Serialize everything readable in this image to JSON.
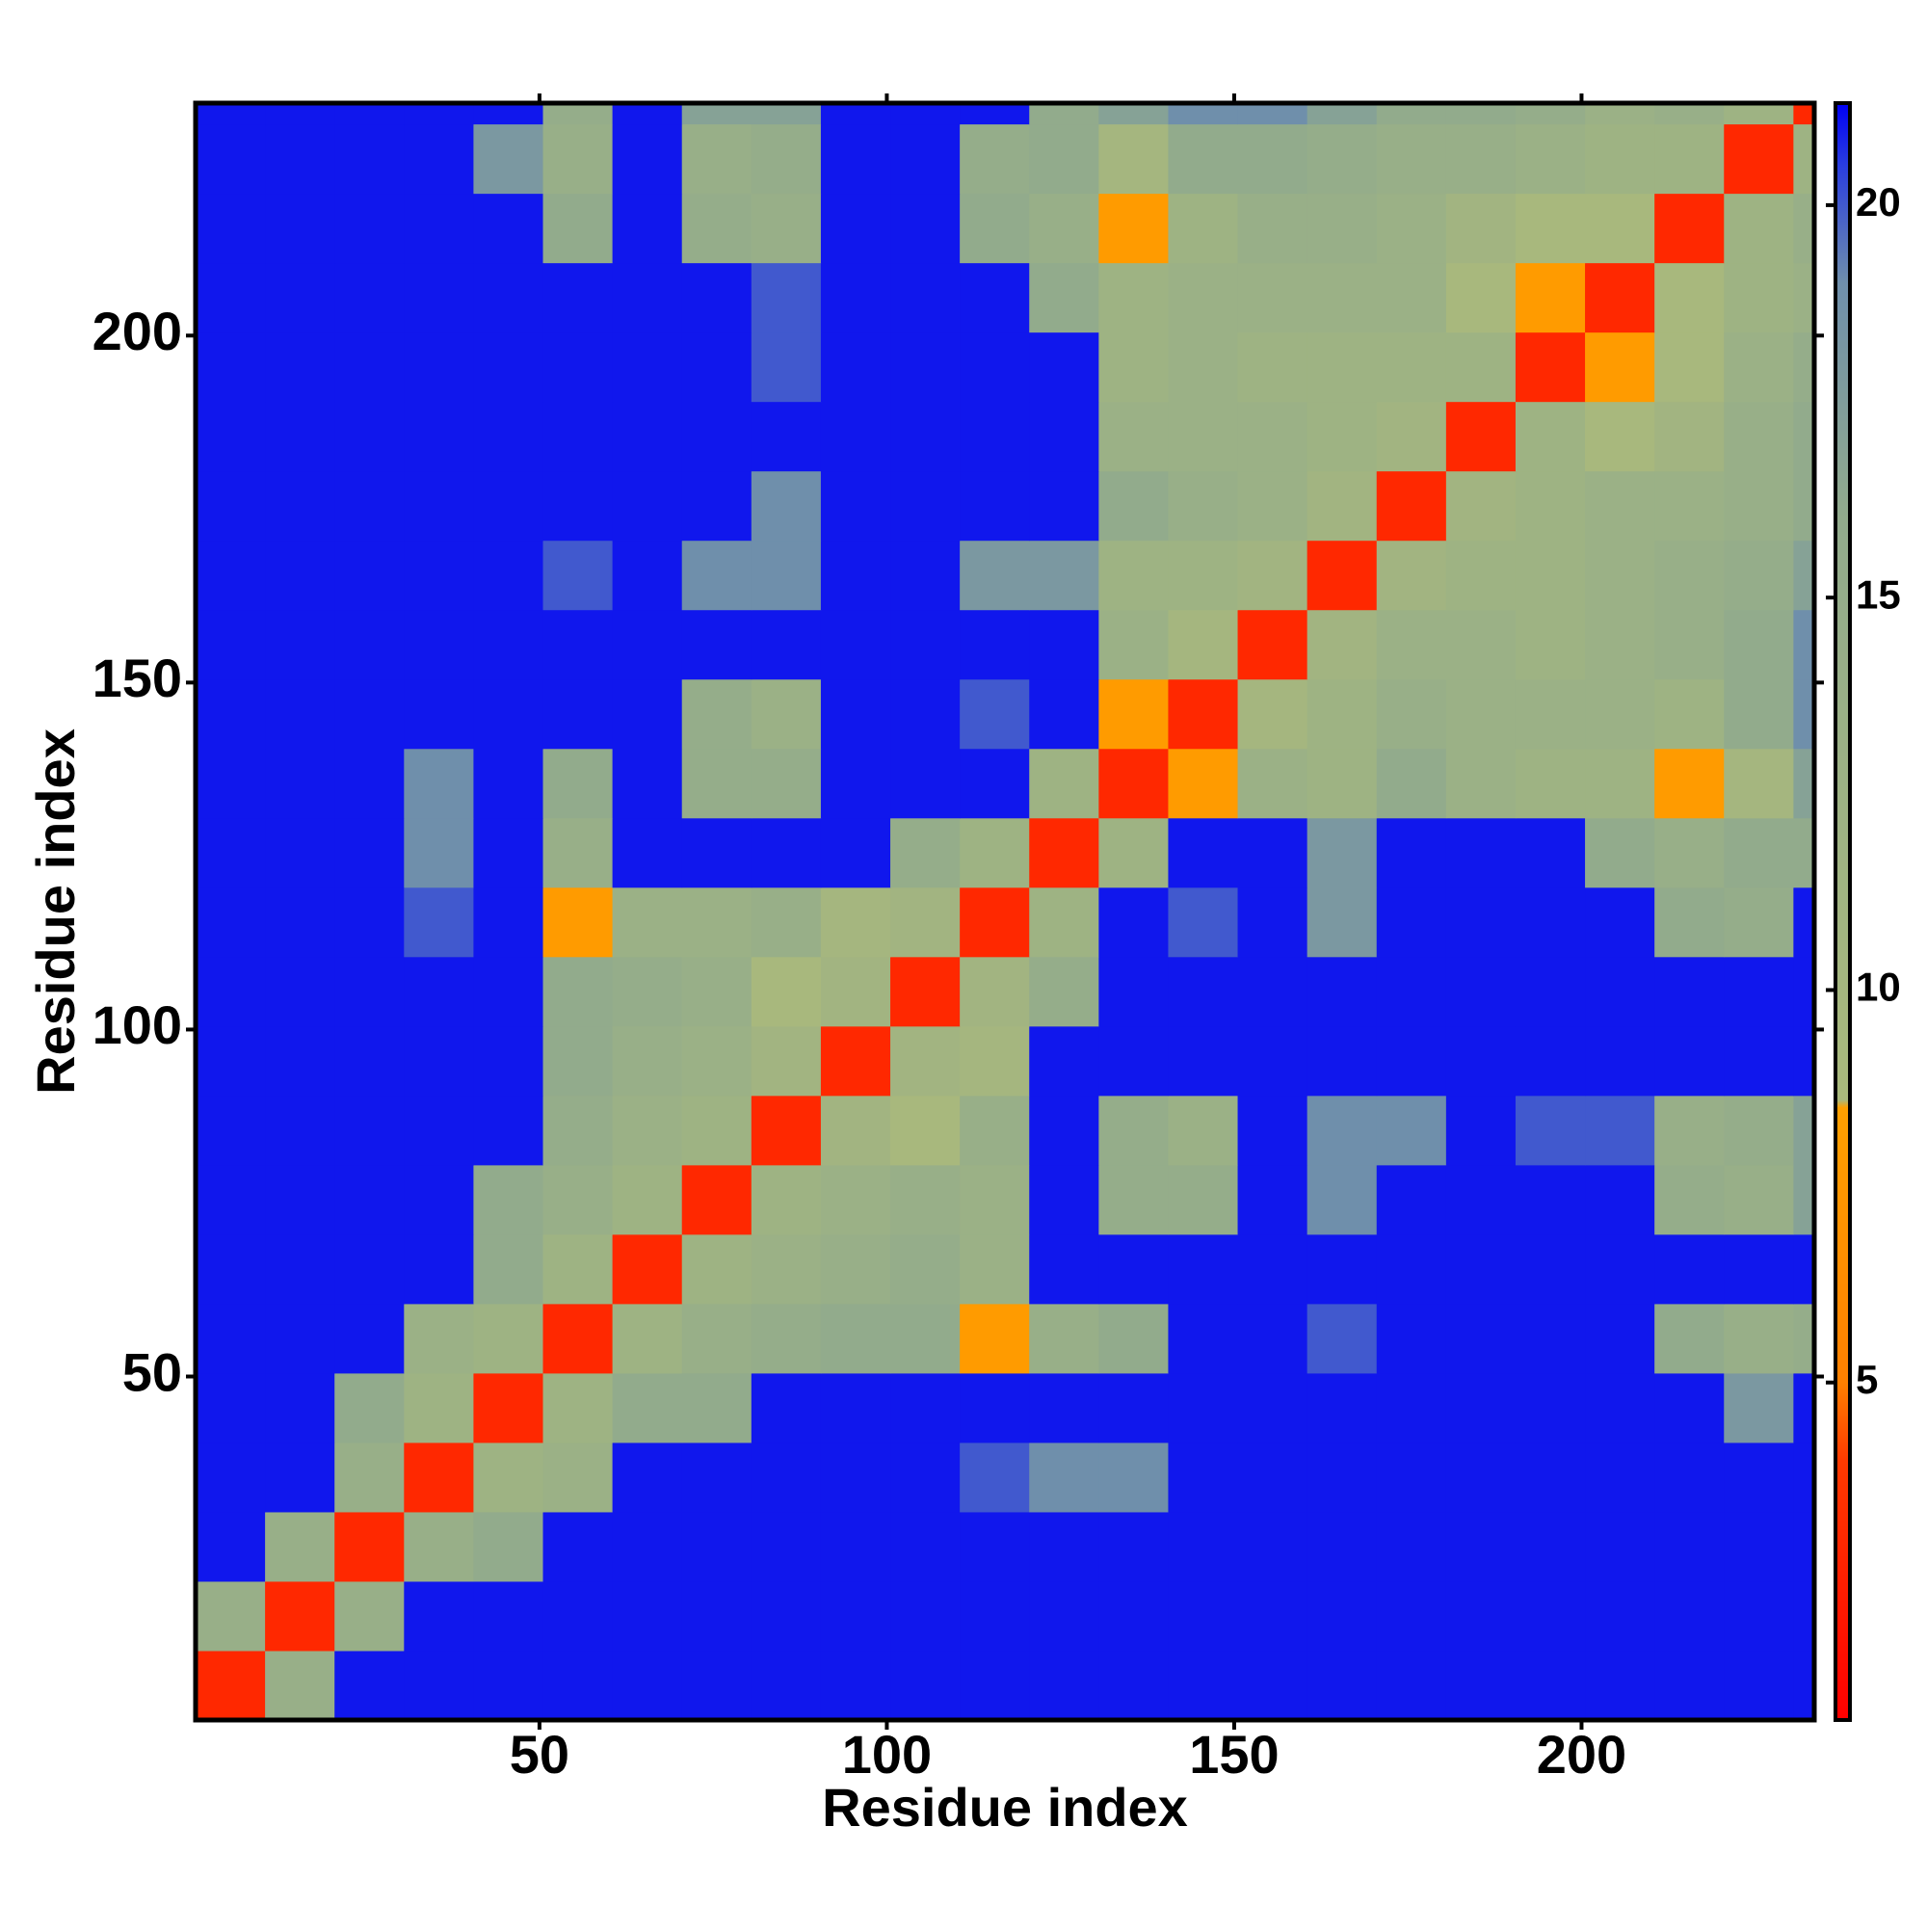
{
  "chart_data": {
    "type": "heatmap",
    "xlabel": "Residue index",
    "ylabel": "Residue index",
    "x_bins": [
      0.5,
      10.5,
      20.5,
      30.5,
      40.5,
      50.5,
      60.5,
      70.5,
      80.5,
      90.5,
      100.5,
      110.5,
      120.5,
      130.5,
      140.5,
      150.5,
      160.5,
      170.5,
      180.5,
      190.5,
      200.5,
      210.5,
      220.5,
      230.5,
      233.5
    ],
    "y_bins": [
      0.5,
      10.5,
      20.5,
      30.5,
      40.5,
      50.5,
      60.5,
      70.5,
      80.5,
      90.5,
      100.5,
      110.5,
      120.5,
      130.5,
      140.5,
      150.5,
      160.5,
      170.5,
      180.5,
      190.5,
      200.5,
      210.5,
      220.5,
      230.5,
      233.5
    ],
    "xlim": [
      0.5,
      233.5
    ],
    "ylim": [
      0.5,
      233.5
    ],
    "xticks": [
      50,
      100,
      150,
      200
    ],
    "yticks": [
      50,
      100,
      150,
      200
    ],
    "clim": [
      0.7,
      21.3
    ],
    "cticks": [
      5,
      10,
      15,
      20
    ],
    "colorscale": [
      [
        0.7,
        "#ff0000"
      ],
      [
        4,
        "#ff3a00"
      ],
      [
        5,
        "#ff8000"
      ],
      [
        8.5,
        "#ffa000"
      ],
      [
        8.6,
        "#a9b97c"
      ],
      [
        16,
        "#92ab8c"
      ],
      [
        19,
        "#6f8fab"
      ],
      [
        20.5,
        "#2a3ee0"
      ],
      [
        21.3,
        "#0000f5"
      ]
    ],
    "z": [
      [
        3,
        14,
        21,
        21,
        21,
        21,
        21,
        21,
        21,
        21,
        21,
        21,
        21,
        21,
        21,
        21,
        21,
        21,
        21,
        21,
        21,
        21,
        21,
        21
      ],
      [
        14,
        3,
        14,
        21,
        21,
        21,
        21,
        21,
        21,
        21,
        21,
        21,
        21,
        21,
        21,
        21,
        21,
        21,
        21,
        21,
        21,
        21,
        21,
        21
      ],
      [
        21,
        14,
        3,
        14,
        16,
        21,
        21,
        21,
        21,
        21,
        21,
        21,
        21,
        21,
        21,
        21,
        21,
        21,
        21,
        21,
        21,
        21,
        21,
        21
      ],
      [
        21,
        21,
        14,
        3,
        12,
        13,
        21,
        21,
        21,
        21,
        21,
        20,
        19,
        19,
        21,
        21,
        21,
        21,
        21,
        21,
        21,
        21,
        21,
        21
      ],
      [
        21,
        21,
        16,
        12,
        3,
        12,
        16,
        16,
        21,
        21,
        21,
        21,
        21,
        21,
        21,
        21,
        21,
        21,
        21,
        21,
        21,
        21,
        18,
        21
      ],
      [
        21,
        21,
        21,
        13,
        12,
        3,
        12,
        14,
        15,
        16,
        16,
        8,
        14,
        16,
        21,
        21,
        20,
        21,
        21,
        21,
        21,
        16,
        14,
        15
      ],
      [
        21,
        21,
        21,
        21,
        16,
        12,
        3,
        12,
        13,
        14,
        15,
        13,
        21,
        21,
        21,
        21,
        21,
        21,
        21,
        21,
        21,
        21,
        21,
        21
      ],
      [
        21,
        21,
        21,
        21,
        16,
        14,
        12,
        3,
        12,
        13,
        14,
        13,
        21,
        15,
        15,
        21,
        19,
        21,
        21,
        21,
        21,
        15,
        14,
        17
      ],
      [
        21,
        21,
        21,
        21,
        21,
        15,
        13,
        12,
        3,
        11,
        9,
        14,
        21,
        15,
        13,
        21,
        19,
        19,
        21,
        20,
        20,
        14,
        15,
        17
      ],
      [
        21,
        21,
        21,
        21,
        21,
        16,
        14,
        13,
        11,
        3,
        11,
        10,
        21,
        21,
        21,
        21,
        21,
        21,
        21,
        21,
        21,
        21,
        21,
        21
      ],
      [
        21,
        21,
        21,
        21,
        21,
        16,
        15,
        14,
        9,
        11,
        3,
        11,
        15,
        21,
        21,
        21,
        21,
        21,
        21,
        21,
        21,
        21,
        21,
        21
      ],
      [
        21,
        21,
        21,
        20,
        21,
        8,
        13,
        13,
        14,
        10,
        11,
        3,
        12,
        21,
        20,
        21,
        18,
        21,
        21,
        21,
        21,
        16,
        15,
        21
      ],
      [
        21,
        21,
        21,
        19,
        21,
        14,
        21,
        21,
        21,
        21,
        15,
        12,
        3,
        12,
        21,
        21,
        18,
        21,
        21,
        21,
        16,
        14,
        16,
        16
      ],
      [
        21,
        21,
        21,
        19,
        21,
        16,
        21,
        15,
        15,
        21,
        21,
        21,
        12,
        3,
        8,
        13,
        12,
        16,
        13,
        12,
        12,
        8,
        10,
        17
      ],
      [
        21,
        21,
        21,
        21,
        21,
        21,
        21,
        15,
        13,
        21,
        21,
        20,
        21,
        8,
        3,
        10,
        12,
        14,
        13,
        13,
        13,
        12,
        16,
        19
      ],
      [
        21,
        21,
        21,
        21,
        21,
        21,
        21,
        21,
        21,
        21,
        21,
        21,
        21,
        13,
        10,
        3,
        11,
        13,
        13,
        12,
        13,
        14,
        16,
        19
      ],
      [
        21,
        21,
        21,
        21,
        21,
        20,
        21,
        19,
        19,
        21,
        21,
        18,
        18,
        12,
        12,
        11,
        3,
        11,
        12,
        12,
        13,
        14,
        15,
        17
      ],
      [
        21,
        21,
        21,
        21,
        21,
        21,
        21,
        21,
        19,
        21,
        21,
        21,
        21,
        16,
        14,
        13,
        11,
        3,
        11,
        12,
        13,
        13,
        14,
        16
      ],
      [
        21,
        21,
        21,
        21,
        21,
        21,
        21,
        21,
        21,
        21,
        21,
        21,
        21,
        13,
        13,
        13,
        12,
        11,
        3,
        12,
        9,
        11,
        14,
        16
      ],
      [
        21,
        21,
        21,
        21,
        21,
        21,
        21,
        21,
        20,
        21,
        21,
        21,
        21,
        12,
        13,
        12,
        12,
        12,
        12,
        3,
        8,
        9,
        13,
        15
      ],
      [
        21,
        21,
        21,
        21,
        21,
        21,
        21,
        21,
        20,
        21,
        21,
        21,
        16,
        12,
        13,
        13,
        13,
        13,
        9,
        8,
        3,
        9,
        12,
        13
      ],
      [
        21,
        21,
        21,
        21,
        21,
        16,
        21,
        15,
        14,
        21,
        21,
        16,
        14,
        8,
        12,
        14,
        14,
        13,
        11,
        9,
        9,
        3,
        12,
        14
      ],
      [
        21,
        21,
        21,
        21,
        18,
        14,
        21,
        14,
        15,
        21,
        21,
        15,
        16,
        10,
        16,
        16,
        15,
        14,
        14,
        13,
        12,
        12,
        3,
        12
      ],
      [
        21,
        21,
        21,
        21,
        21,
        15,
        21,
        17,
        17,
        21,
        21,
        21,
        16,
        17,
        19,
        19,
        17,
        16,
        16,
        15,
        13,
        14,
        12,
        3
      ]
    ]
  }
}
